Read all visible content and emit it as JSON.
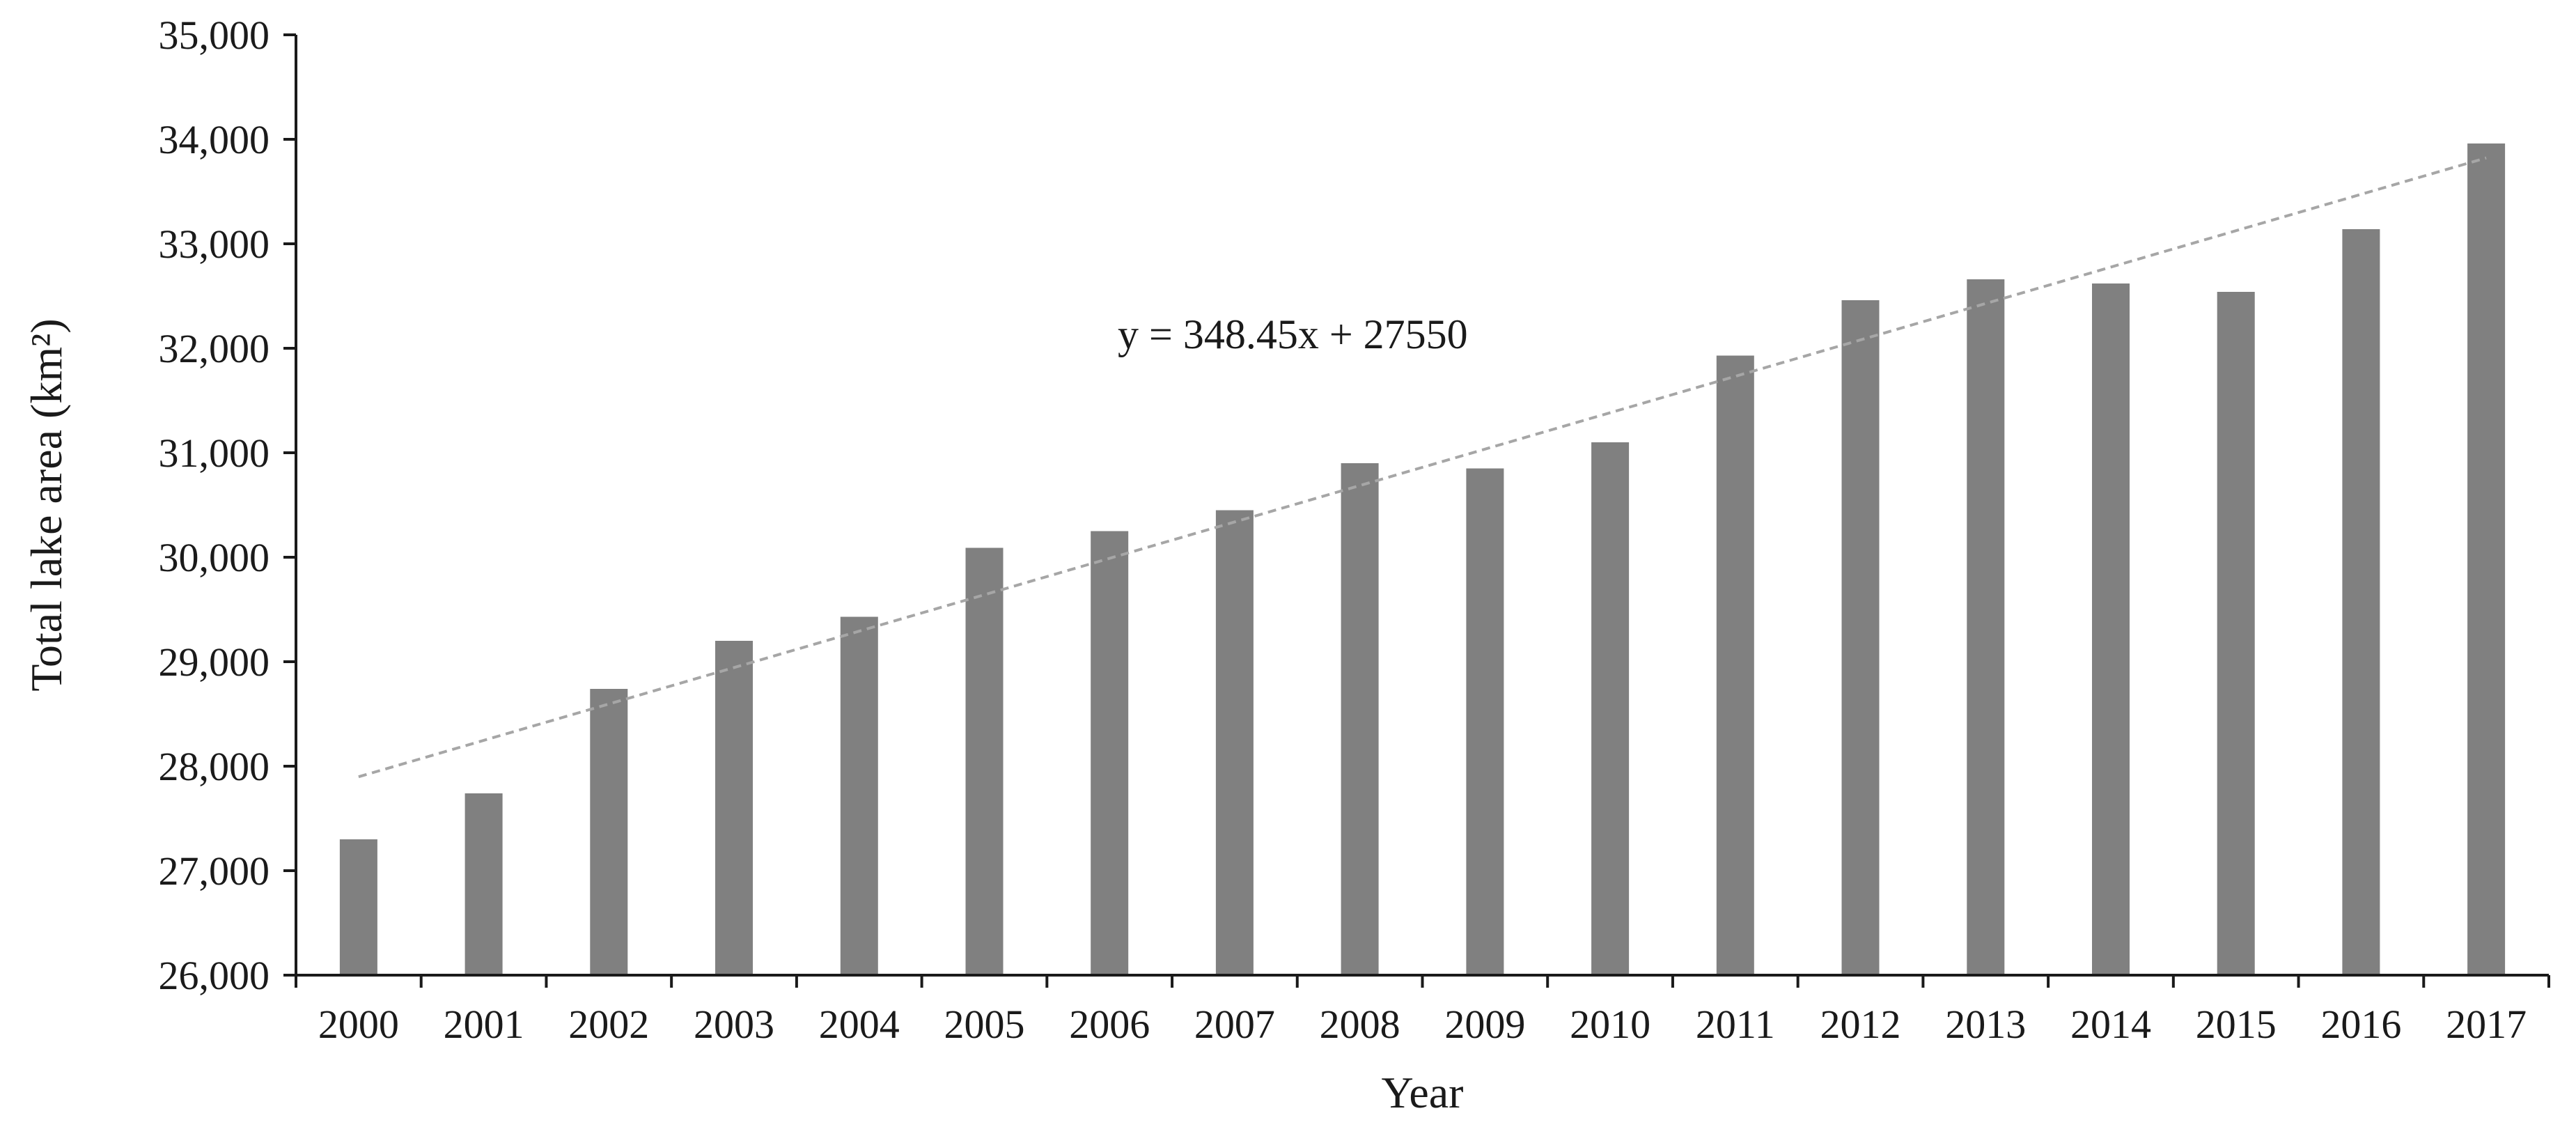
{
  "chart_data": {
    "type": "bar",
    "title": "",
    "xlabel": "Year",
    "ylabel": "Total lake area (km²)",
    "categories": [
      "2000",
      "2001",
      "2002",
      "2003",
      "2004",
      "2005",
      "2006",
      "2007",
      "2008",
      "2009",
      "2010",
      "2011",
      "2012",
      "2013",
      "2014",
      "2015",
      "2016",
      "2017"
    ],
    "values": [
      27300,
      27740,
      28740,
      29200,
      29430,
      30090,
      30250,
      30450,
      30900,
      30850,
      31100,
      31930,
      32460,
      32660,
      32620,
      32540,
      33140,
      33960
    ],
    "ylim": [
      26000,
      35000
    ],
    "yticks": [
      26000,
      27000,
      28000,
      29000,
      30000,
      31000,
      32000,
      33000,
      34000,
      35000
    ],
    "ytick_labels": [
      "26,000",
      "27,000",
      "28,000",
      "29,000",
      "30,000",
      "31,000",
      "32,000",
      "33,000",
      "34,000",
      "35,000"
    ],
    "grid": false,
    "bar_color": "#808080",
    "trendline": {
      "slope": 348.45,
      "intercept": 27550,
      "label": "y = 348.45x + 27550",
      "style": "dashed",
      "color": "#a6a6a6"
    }
  }
}
